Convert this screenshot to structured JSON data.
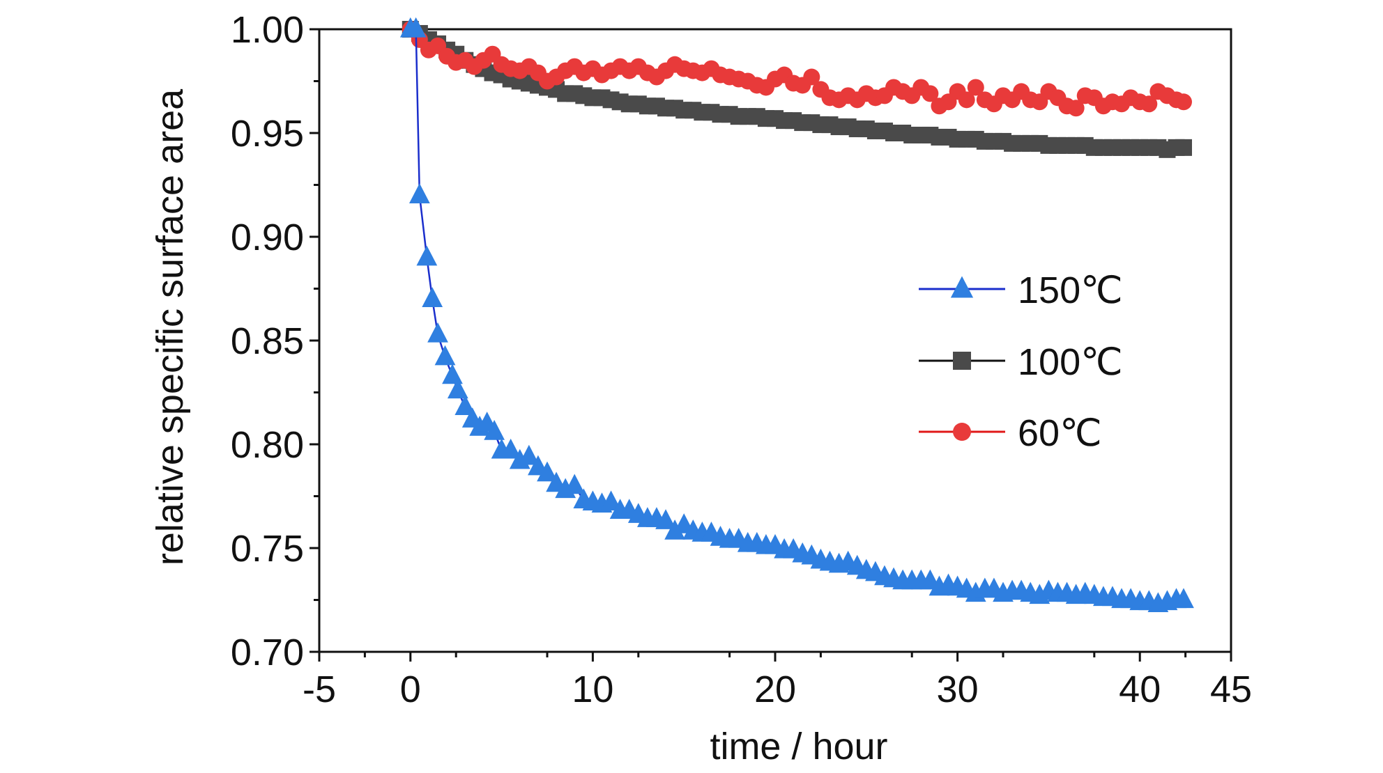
{
  "chart_data": {
    "type": "scatter",
    "title": "",
    "xlabel": "time / hour",
    "ylabel": "relative specific surface area",
    "xlim": [
      -5,
      45
    ],
    "ylim": [
      0.7,
      1.0
    ],
    "x_ticks": [
      "-5",
      "0",
      "10",
      "20",
      "30",
      "40",
      "45"
    ],
    "y_ticks": [
      "0.70",
      "0.75",
      "0.80",
      "0.85",
      "0.90",
      "0.95",
      "1.00"
    ],
    "grid": false,
    "legend_position": "center-right",
    "series": [
      {
        "name": "150℃",
        "color": "#2f7fe0",
        "line_color": "#1a2ecc",
        "marker": "triangle",
        "points": [
          [
            0.0,
            1.0
          ],
          [
            0.3,
            1.0
          ],
          [
            0.5,
            0.92
          ],
          [
            0.9,
            0.89
          ],
          [
            1.2,
            0.87
          ],
          [
            1.5,
            0.853
          ],
          [
            1.9,
            0.842
          ],
          [
            2.3,
            0.833
          ],
          [
            2.6,
            0.826
          ],
          [
            3.0,
            0.818
          ],
          [
            3.4,
            0.812
          ],
          [
            3.8,
            0.808
          ],
          [
            4.2,
            0.81
          ],
          [
            4.6,
            0.806
          ],
          [
            5.0,
            0.797
          ],
          [
            5.5,
            0.797
          ],
          [
            6.0,
            0.792
          ],
          [
            6.5,
            0.794
          ],
          [
            7.0,
            0.789
          ],
          [
            7.5,
            0.786
          ],
          [
            8.0,
            0.781
          ],
          [
            8.5,
            0.778
          ],
          [
            9.0,
            0.78
          ],
          [
            9.5,
            0.773
          ],
          [
            10.0,
            0.772
          ],
          [
            10.5,
            0.771
          ],
          [
            11.0,
            0.772
          ],
          [
            11.5,
            0.768
          ],
          [
            12.0,
            0.768
          ],
          [
            12.5,
            0.766
          ],
          [
            13.0,
            0.764
          ],
          [
            13.5,
            0.764
          ],
          [
            14.0,
            0.763
          ],
          [
            14.5,
            0.758
          ],
          [
            15.0,
            0.761
          ],
          [
            15.5,
            0.758
          ],
          [
            16.0,
            0.757
          ],
          [
            16.5,
            0.757
          ],
          [
            17.0,
            0.755
          ],
          [
            17.5,
            0.754
          ],
          [
            18.0,
            0.754
          ],
          [
            18.5,
            0.752
          ],
          [
            19.0,
            0.752
          ],
          [
            19.5,
            0.751
          ],
          [
            20.0,
            0.751
          ],
          [
            20.5,
            0.749
          ],
          [
            21.0,
            0.749
          ],
          [
            21.5,
            0.747
          ],
          [
            22.0,
            0.746
          ],
          [
            22.5,
            0.744
          ],
          [
            23.0,
            0.743
          ],
          [
            23.5,
            0.742
          ],
          [
            24.0,
            0.743
          ],
          [
            24.5,
            0.741
          ],
          [
            25.0,
            0.739
          ],
          [
            25.5,
            0.738
          ],
          [
            26.0,
            0.736
          ],
          [
            26.5,
            0.735
          ],
          [
            27.0,
            0.734
          ],
          [
            27.5,
            0.734
          ],
          [
            28.0,
            0.734
          ],
          [
            28.5,
            0.734
          ],
          [
            29.0,
            0.731
          ],
          [
            29.5,
            0.732
          ],
          [
            30.0,
            0.731
          ],
          [
            30.5,
            0.73
          ],
          [
            31.0,
            0.728
          ],
          [
            31.5,
            0.73
          ],
          [
            32.0,
            0.73
          ],
          [
            32.5,
            0.728
          ],
          [
            33.0,
            0.729
          ],
          [
            33.5,
            0.729
          ],
          [
            34.0,
            0.728
          ],
          [
            34.5,
            0.727
          ],
          [
            35.0,
            0.729
          ],
          [
            35.5,
            0.728
          ],
          [
            36.0,
            0.728
          ],
          [
            36.5,
            0.727
          ],
          [
            37.0,
            0.728
          ],
          [
            37.5,
            0.727
          ],
          [
            38.0,
            0.726
          ],
          [
            38.5,
            0.726
          ],
          [
            39.0,
            0.725
          ],
          [
            39.5,
            0.725
          ],
          [
            40.0,
            0.724
          ],
          [
            40.5,
            0.724
          ],
          [
            41.0,
            0.723
          ],
          [
            41.5,
            0.724
          ],
          [
            42.0,
            0.725
          ],
          [
            42.4,
            0.725
          ]
        ]
      },
      {
        "name": "100℃",
        "color": "#4a4a4a",
        "line_color": "#111111",
        "marker": "square",
        "points": [
          [
            0.0,
            1.0
          ],
          [
            0.5,
            0.998
          ],
          [
            1.0,
            0.995
          ],
          [
            1.5,
            0.993
          ],
          [
            2.0,
            0.99
          ],
          [
            2.5,
            0.988
          ],
          [
            3.0,
            0.985
          ],
          [
            3.5,
            0.983
          ],
          [
            4.0,
            0.981
          ],
          [
            4.5,
            0.979
          ],
          [
            5.0,
            0.978
          ],
          [
            5.5,
            0.976
          ],
          [
            6.0,
            0.975
          ],
          [
            6.5,
            0.974
          ],
          [
            7.0,
            0.973
          ],
          [
            7.5,
            0.972
          ],
          [
            8.0,
            0.971
          ],
          [
            8.5,
            0.969
          ],
          [
            9.0,
            0.969
          ],
          [
            9.5,
            0.968
          ],
          [
            10.0,
            0.967
          ],
          [
            10.5,
            0.967
          ],
          [
            11.0,
            0.966
          ],
          [
            11.5,
            0.965
          ],
          [
            12.0,
            0.964
          ],
          [
            12.5,
            0.964
          ],
          [
            13.0,
            0.963
          ],
          [
            13.5,
            0.963
          ],
          [
            14.0,
            0.962
          ],
          [
            14.5,
            0.962
          ],
          [
            15.0,
            0.961
          ],
          [
            15.5,
            0.961
          ],
          [
            16.0,
            0.96
          ],
          [
            16.5,
            0.96
          ],
          [
            17.0,
            0.959
          ],
          [
            17.5,
            0.959
          ],
          [
            18.0,
            0.958
          ],
          [
            18.5,
            0.958
          ],
          [
            19.0,
            0.958
          ],
          [
            19.5,
            0.957
          ],
          [
            20.0,
            0.957
          ],
          [
            20.5,
            0.956
          ],
          [
            21.0,
            0.956
          ],
          [
            21.5,
            0.955
          ],
          [
            22.0,
            0.955
          ],
          [
            22.5,
            0.954
          ],
          [
            23.0,
            0.954
          ],
          [
            23.5,
            0.953
          ],
          [
            24.0,
            0.953
          ],
          [
            24.5,
            0.952
          ],
          [
            25.0,
            0.952
          ],
          [
            25.5,
            0.951
          ],
          [
            26.0,
            0.951
          ],
          [
            26.5,
            0.95
          ],
          [
            27.0,
            0.95
          ],
          [
            27.5,
            0.949
          ],
          [
            28.0,
            0.949
          ],
          [
            28.5,
            0.949
          ],
          [
            29.0,
            0.948
          ],
          [
            29.5,
            0.948
          ],
          [
            30.0,
            0.947
          ],
          [
            30.5,
            0.947
          ],
          [
            31.0,
            0.947
          ],
          [
            31.5,
            0.946
          ],
          [
            32.0,
            0.946
          ],
          [
            32.5,
            0.946
          ],
          [
            33.0,
            0.945
          ],
          [
            33.5,
            0.945
          ],
          [
            34.0,
            0.945
          ],
          [
            34.5,
            0.945
          ],
          [
            35.0,
            0.944
          ],
          [
            35.5,
            0.944
          ],
          [
            36.0,
            0.944
          ],
          [
            36.5,
            0.944
          ],
          [
            37.0,
            0.944
          ],
          [
            37.5,
            0.943
          ],
          [
            38.0,
            0.943
          ],
          [
            38.5,
            0.943
          ],
          [
            39.0,
            0.943
          ],
          [
            39.5,
            0.943
          ],
          [
            40.0,
            0.943
          ],
          [
            40.5,
            0.943
          ],
          [
            41.0,
            0.943
          ],
          [
            41.5,
            0.942
          ],
          [
            42.0,
            0.943
          ],
          [
            42.4,
            0.943
          ]
        ]
      },
      {
        "name": "60℃",
        "color": "#e83a3a",
        "line_color": "#e01818",
        "marker": "circle",
        "points": [
          [
            0.0,
            1.0
          ],
          [
            0.5,
            0.995
          ],
          [
            1.0,
            0.99
          ],
          [
            1.5,
            0.992
          ],
          [
            2.0,
            0.987
          ],
          [
            2.5,
            0.984
          ],
          [
            3.0,
            0.985
          ],
          [
            3.5,
            0.982
          ],
          [
            4.0,
            0.985
          ],
          [
            4.5,
            0.988
          ],
          [
            5.0,
            0.983
          ],
          [
            5.5,
            0.981
          ],
          [
            6.0,
            0.98
          ],
          [
            6.5,
            0.982
          ],
          [
            7.0,
            0.979
          ],
          [
            7.5,
            0.975
          ],
          [
            8.0,
            0.977
          ],
          [
            8.5,
            0.98
          ],
          [
            9.0,
            0.982
          ],
          [
            9.5,
            0.979
          ],
          [
            10.0,
            0.981
          ],
          [
            10.5,
            0.978
          ],
          [
            11.0,
            0.98
          ],
          [
            11.5,
            0.982
          ],
          [
            12.0,
            0.98
          ],
          [
            12.5,
            0.982
          ],
          [
            13.0,
            0.979
          ],
          [
            13.5,
            0.977
          ],
          [
            14.0,
            0.98
          ],
          [
            14.5,
            0.983
          ],
          [
            15.0,
            0.981
          ],
          [
            15.5,
            0.98
          ],
          [
            16.0,
            0.979
          ],
          [
            16.5,
            0.981
          ],
          [
            17.0,
            0.978
          ],
          [
            17.5,
            0.977
          ],
          [
            18.0,
            0.976
          ],
          [
            18.5,
            0.975
          ],
          [
            19.0,
            0.973
          ],
          [
            19.5,
            0.972
          ],
          [
            20.0,
            0.976
          ],
          [
            20.5,
            0.978
          ],
          [
            21.0,
            0.974
          ],
          [
            21.5,
            0.973
          ],
          [
            22.0,
            0.977
          ],
          [
            22.5,
            0.971
          ],
          [
            23.0,
            0.967
          ],
          [
            23.5,
            0.966
          ],
          [
            24.0,
            0.968
          ],
          [
            24.5,
            0.966
          ],
          [
            25.0,
            0.969
          ],
          [
            25.5,
            0.967
          ],
          [
            26.0,
            0.968
          ],
          [
            26.5,
            0.972
          ],
          [
            27.0,
            0.97
          ],
          [
            27.5,
            0.968
          ],
          [
            28.0,
            0.972
          ],
          [
            28.5,
            0.969
          ],
          [
            29.0,
            0.963
          ],
          [
            29.5,
            0.965
          ],
          [
            30.0,
            0.97
          ],
          [
            30.5,
            0.966
          ],
          [
            31.0,
            0.972
          ],
          [
            31.5,
            0.966
          ],
          [
            32.0,
            0.964
          ],
          [
            32.5,
            0.968
          ],
          [
            33.0,
            0.966
          ],
          [
            33.5,
            0.97
          ],
          [
            34.0,
            0.966
          ],
          [
            34.5,
            0.965
          ],
          [
            35.0,
            0.97
          ],
          [
            35.5,
            0.967
          ],
          [
            36.0,
            0.963
          ],
          [
            36.5,
            0.962
          ],
          [
            37.0,
            0.968
          ],
          [
            37.5,
            0.967
          ],
          [
            38.0,
            0.963
          ],
          [
            38.5,
            0.965
          ],
          [
            39.0,
            0.964
          ],
          [
            39.5,
            0.967
          ],
          [
            40.0,
            0.965
          ],
          [
            40.5,
            0.964
          ],
          [
            41.0,
            0.97
          ],
          [
            41.5,
            0.968
          ],
          [
            42.0,
            0.966
          ],
          [
            42.4,
            0.965
          ]
        ]
      }
    ]
  }
}
